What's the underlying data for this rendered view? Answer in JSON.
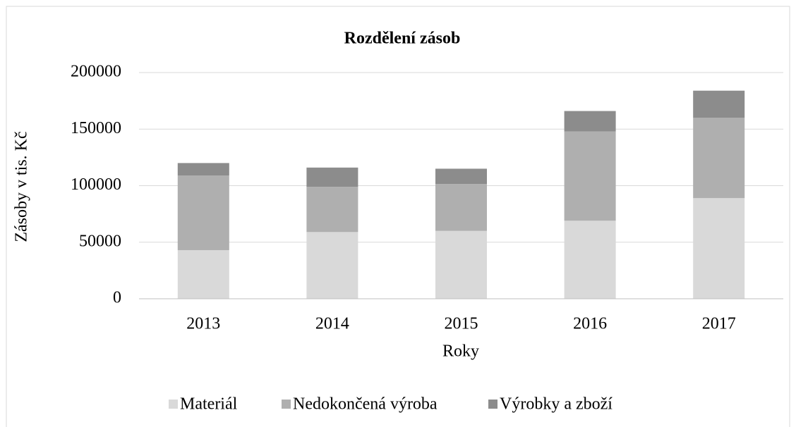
{
  "chart_data": {
    "type": "bar",
    "stacked": true,
    "title": "Rozdělení zásob",
    "xlabel": "Roky",
    "ylabel": "Zásoby v tis. Kč",
    "categories": [
      "2013",
      "2014",
      "2015",
      "2016",
      "2017"
    ],
    "series": [
      {
        "name": "Materiál",
        "color": "#d9d9d9",
        "values": [
          43000,
          59000,
          60000,
          69000,
          89000
        ]
      },
      {
        "name": "Nedokončená výroba",
        "color": "#afafaf",
        "values": [
          66000,
          40000,
          41500,
          79000,
          71000
        ]
      },
      {
        "name": "Výrobky a zboží",
        "color": "#8c8c8c",
        "values": [
          11000,
          17000,
          13500,
          18000,
          24000
        ]
      }
    ],
    "ylim": [
      0,
      200000
    ],
    "yticks": [
      0,
      50000,
      100000,
      150000,
      200000
    ],
    "grid": true,
    "legend": "bottom"
  }
}
